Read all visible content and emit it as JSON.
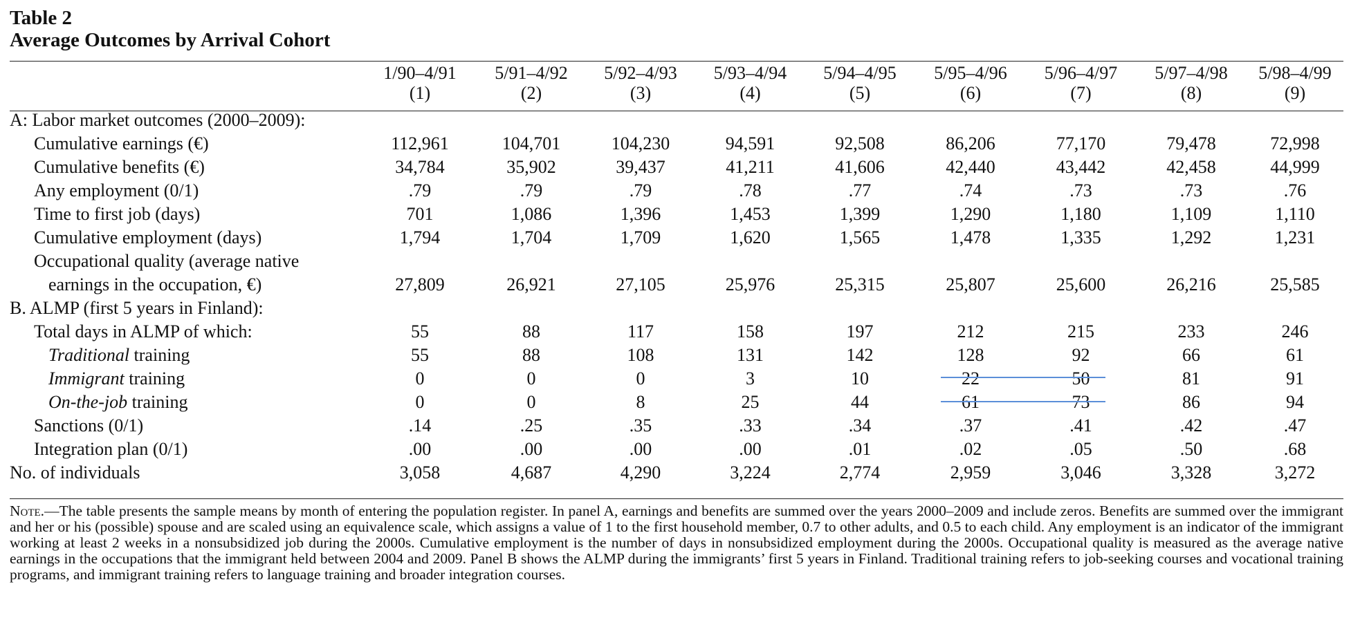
{
  "table_label": "Table 2",
  "table_title": "Average Outcomes by Arrival Cohort",
  "columns": [
    {
      "cohort": "1/90–4/91",
      "num": "(1)"
    },
    {
      "cohort": "5/91–4/92",
      "num": "(2)"
    },
    {
      "cohort": "5/92–4/93",
      "num": "(3)"
    },
    {
      "cohort": "5/93–4/94",
      "num": "(4)"
    },
    {
      "cohort": "5/94–4/95",
      "num": "(5)"
    },
    {
      "cohort": "5/95–4/96",
      "num": "(6)"
    },
    {
      "cohort": "5/96–4/97",
      "num": "(7)"
    },
    {
      "cohort": "5/97–4/98",
      "num": "(8)"
    },
    {
      "cohort": "5/98–4/99",
      "num": "(9)"
    }
  ],
  "panel_a": {
    "heading": "A: Labor market outcomes (2000–2009):",
    "rows": [
      {
        "label": "Cumulative earnings (€)",
        "values": [
          "112,961",
          "104,701",
          "104,230",
          "94,591",
          "92,508",
          "86,206",
          "77,170",
          "79,478",
          "72,998"
        ]
      },
      {
        "label": "Cumulative benefits (€)",
        "values": [
          "34,784",
          "35,902",
          "39,437",
          "41,211",
          "41,606",
          "42,440",
          "43,442",
          "42,458",
          "44,999"
        ]
      },
      {
        "label": "Any employment (0/1)",
        "values": [
          ".79",
          ".79",
          ".79",
          ".78",
          ".77",
          ".74",
          ".73",
          ".73",
          ".76"
        ]
      },
      {
        "label": "Time to first job (days)",
        "values": [
          "701",
          "1,086",
          "1,396",
          "1,453",
          "1,399",
          "1,290",
          "1,180",
          "1,109",
          "1,110"
        ]
      },
      {
        "label": "Cumulative employment (days)",
        "values": [
          "1,794",
          "1,704",
          "1,709",
          "1,620",
          "1,565",
          "1,478",
          "1,335",
          "1,292",
          "1,231"
        ]
      }
    ],
    "occ_label_line1": "Occupational quality (average native",
    "occ_label_line2": "earnings in the occupation, €)",
    "occ_values": [
      "27,809",
      "26,921",
      "27,105",
      "25,976",
      "25,315",
      "25,807",
      "25,600",
      "26,216",
      "25,585"
    ]
  },
  "panel_b": {
    "heading": "B. ALMP (first 5 years in Finland):",
    "total": {
      "label": "Total days in ALMP of which:",
      "values": [
        "55",
        "88",
        "117",
        "158",
        "197",
        "212",
        "215",
        "233",
        "246"
      ]
    },
    "traditional": {
      "label_italic": "Traditional",
      "label_rest": " training",
      "values": [
        "55",
        "88",
        "108",
        "131",
        "142",
        "128",
        "92",
        "66",
        "61"
      ]
    },
    "immigrant": {
      "label_italic": "Immigrant",
      "label_rest": " training",
      "values": [
        "0",
        "0",
        "0",
        "3",
        "10",
        "22",
        "50",
        "81",
        "91"
      ]
    },
    "onthejob": {
      "label_italic": "On-the-job",
      "label_rest": " training",
      "values": [
        "0",
        "0",
        "8",
        "25",
        "44",
        "61",
        "73",
        "86",
        "94"
      ]
    },
    "sanctions": {
      "label": "Sanctions (0/1)",
      "values": [
        ".14",
        ".25",
        ".35",
        ".33",
        ".34",
        ".37",
        ".41",
        ".42",
        ".47"
      ]
    },
    "integration": {
      "label": "Integration plan (0/1)",
      "values": [
        ".00",
        ".00",
        ".00",
        ".00",
        ".01",
        ".02",
        ".05",
        ".50",
        ".68"
      ]
    }
  },
  "individuals": {
    "label": "No. of individuals",
    "values": [
      "3,058",
      "4,687",
      "4,290",
      "3,224",
      "2,774",
      "2,959",
      "3,046",
      "3,328",
      "3,272"
    ]
  },
  "note": {
    "lead": "Note.",
    "text": "—The table presents the sample means by month of entering the population register. In panel A, earnings and benefits are summed over the years 2000–2009 and include zeros. Benefits are summed over the immigrant and her or his (possible) spouse and are scaled using an equivalence scale, which assigns a value of 1 to the first household member, 0.7 to other adults, and 0.5 to each child. Any employment is an indicator of the immigrant working at least 2 weeks in a nonsubsidized job during the 2000s. Cumulative employment is the number of days in nonsubsidized employment during the 2000s. Occupational quality is measured as the average native earnings in the occupations that the immigrant held between 2004 and 2009. Panel B shows the ALMP during the immigrants’ first 5 years in Finland. Traditional training refers to job-seeking courses and vocational training programs, and immigrant training refers to language training and broader integration courses."
  }
}
